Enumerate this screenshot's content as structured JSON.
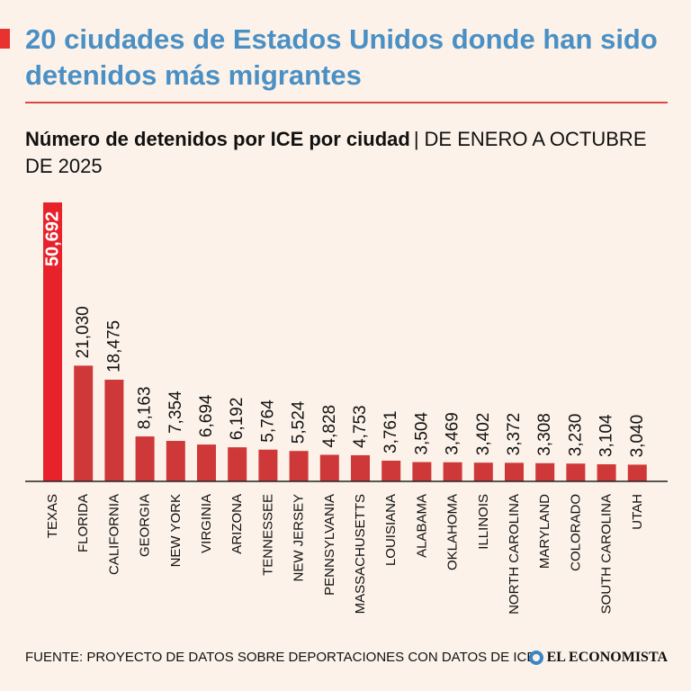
{
  "header": {
    "title": "20 ciudades de Estados Unidos donde han sido detenidos más migrantes"
  },
  "subtitle": {
    "bold_part": "Número de detenidos por ICE por ciudad",
    "separator": "|",
    "regular_part": "DE ENERO A OCTUBRE DE 2025"
  },
  "footer": {
    "source": "FUENTE: PROYECTO DE DATOS SOBRE DEPORTACIONES CON DATOS DE ICE",
    "brand": "EL ECONOMISTA"
  },
  "colors": {
    "highlight": "#e8222a",
    "bar": "#cf3838",
    "title": "#4a90c4"
  },
  "chart_data": {
    "type": "bar",
    "title": "Número de detenidos por ICE por ciudad",
    "xlabel": "",
    "ylabel": "",
    "ylim": [
      0,
      50692
    ],
    "grid": false,
    "categories": [
      "TEXAS",
      "FLORIDA",
      "CALIFORNIA",
      "GEORGIA",
      "NEW YORK",
      "VIRGINIA",
      "ARIZONA",
      "TENNESSEE",
      "NEW JERSEY",
      "PENNSYLVANIA",
      "MASSACHUSETTS",
      "LOUISIANA",
      "ALABAMA",
      "OKLAHOMA",
      "ILLINOIS",
      "NORTH CAROLINA",
      "MARYLAND",
      "COLORADO",
      "SOUTH CAROLINA",
      "UTAH"
    ],
    "values": [
      50692,
      21030,
      18475,
      8163,
      7354,
      6694,
      6192,
      5764,
      5524,
      4828,
      4753,
      3761,
      3504,
      3469,
      3402,
      3372,
      3308,
      3230,
      3104,
      3040
    ],
    "value_labels": [
      "50,692",
      "21,030",
      "18,475",
      "8,163",
      "7,354",
      "6,694",
      "6,192",
      "5,764",
      "5,524",
      "4,828",
      "4,753",
      "3,761",
      "3,504",
      "3,469",
      "3,402",
      "3,372",
      "3,308",
      "3,230",
      "3,104",
      "3,040"
    ],
    "highlighted_index": 0
  }
}
